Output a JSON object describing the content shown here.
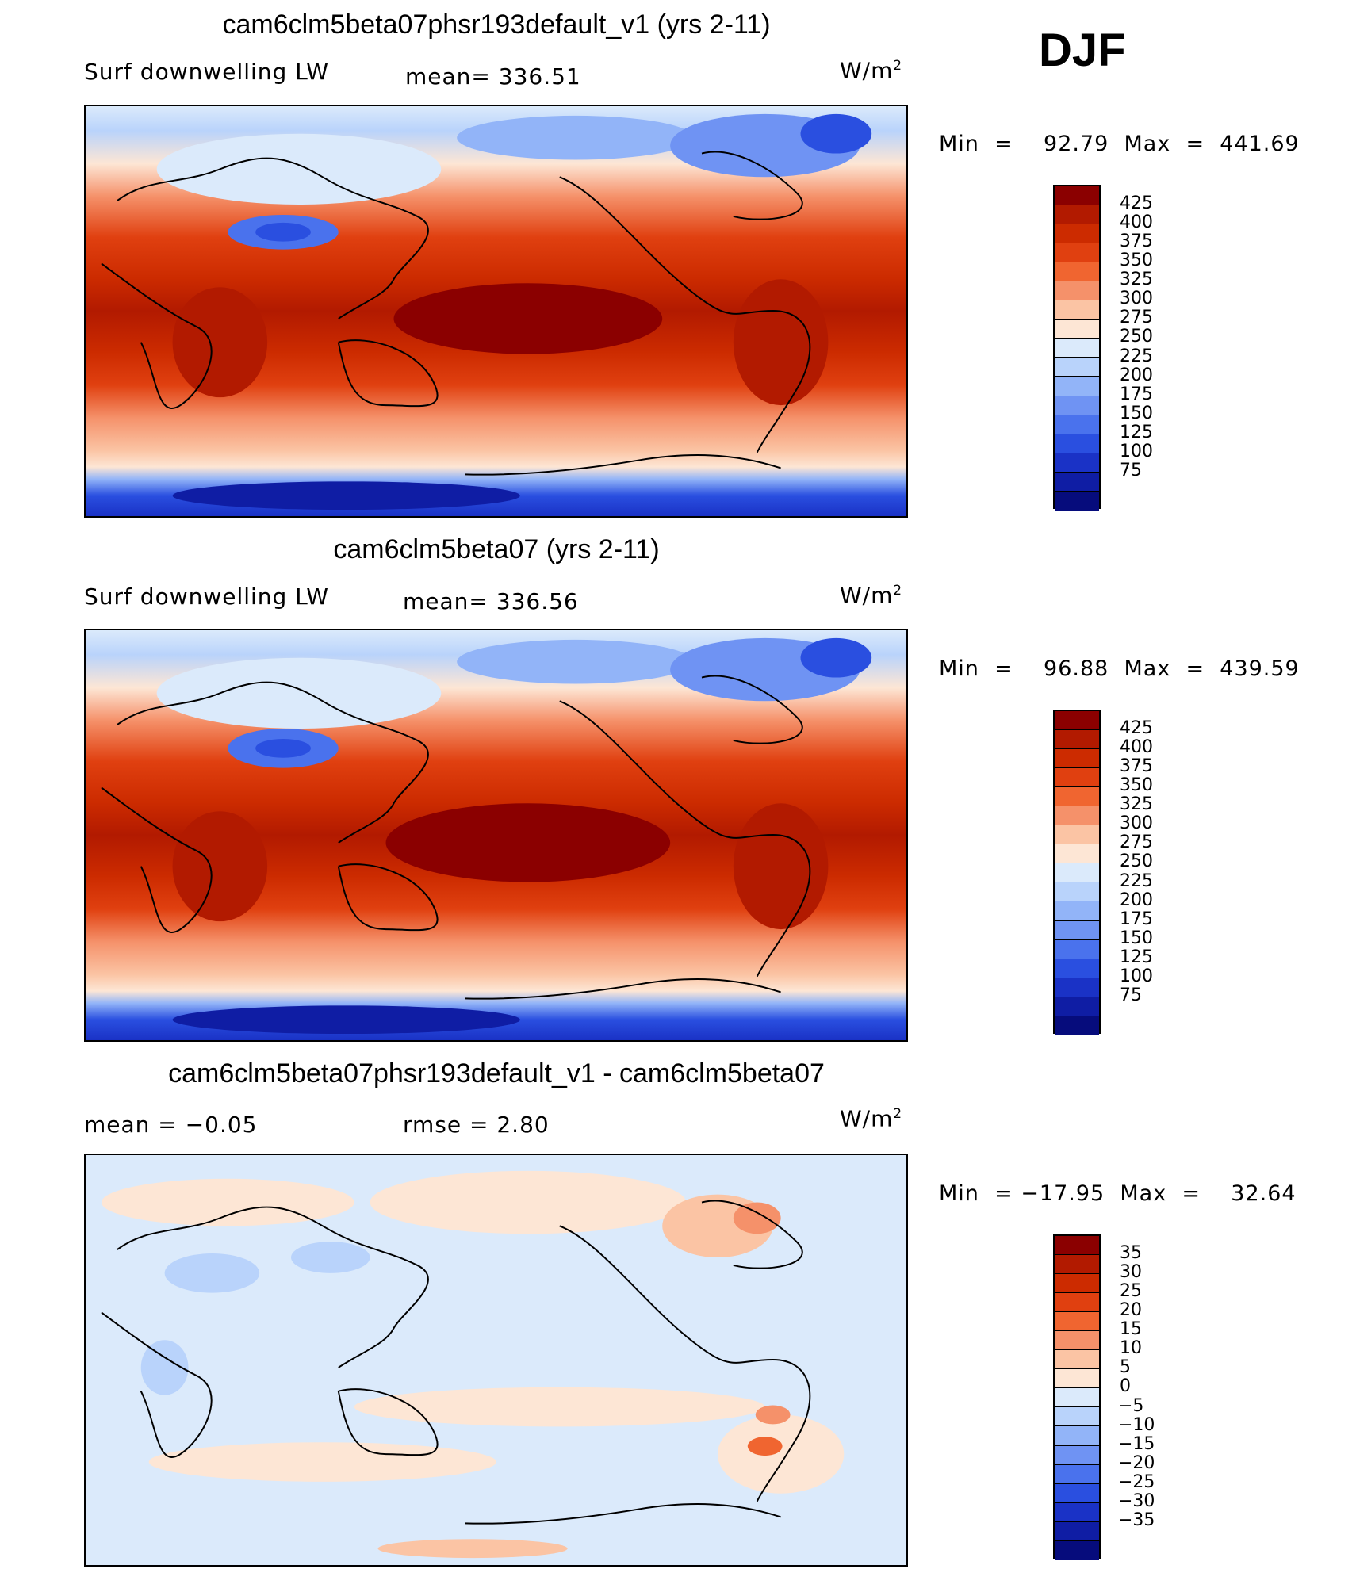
{
  "season": "DJF",
  "panels": [
    {
      "title": "cam6clm5beta07phsr193default_v1 (yrs 2-11)",
      "left_text": "Surf  downwelling  LW",
      "mid_text": "mean=  336.51",
      "units": "W/m",
      "units_sup": "2",
      "minmax": "Min  =    92.79  Max  =  441.69",
      "colorbar_labels": [
        "425",
        "400",
        "375",
        "350",
        "325",
        "300",
        "275",
        "250",
        "225",
        "200",
        "175",
        "150",
        "125",
        "100",
        "75"
      ],
      "colors": [
        "#8b0000",
        "#b21a00",
        "#cc2b00",
        "#e04010",
        "#f06530",
        "#f5916a",
        "#fbc4a4",
        "#fde6d5",
        "#dbeafb",
        "#b9d3fb",
        "#92b4f8",
        "#6f93f3",
        "#4a72ed",
        "#2a4fe0",
        "#1a32c6",
        "#0f1da4",
        "#060c7c"
      ]
    },
    {
      "title": "cam6clm5beta07 (yrs 2-11)",
      "left_text": "Surf  downwelling  LW",
      "mid_text": "mean=  336.56",
      "units": "W/m",
      "units_sup": "2",
      "minmax": "Min  =    96.88  Max  =  439.59",
      "colorbar_labels": [
        "425",
        "400",
        "375",
        "350",
        "325",
        "300",
        "275",
        "250",
        "225",
        "200",
        "175",
        "150",
        "125",
        "100",
        "75"
      ],
      "colors": [
        "#8b0000",
        "#b21a00",
        "#cc2b00",
        "#e04010",
        "#f06530",
        "#f5916a",
        "#fbc4a4",
        "#fde6d5",
        "#dbeafb",
        "#b9d3fb",
        "#92b4f8",
        "#6f93f3",
        "#4a72ed",
        "#2a4fe0",
        "#1a32c6",
        "#0f1da4",
        "#060c7c"
      ]
    },
    {
      "title": "cam6clm5beta07phsr193default_v1 - cam6clm5beta07",
      "left_text": "mean  =    −0.05",
      "mid_text": "rmse  =     2.80",
      "units": "W/m",
      "units_sup": "2",
      "minmax": "Min  = −17.95  Max  =    32.64",
      "colorbar_labels": [
        "35",
        "30",
        "25",
        "20",
        "15",
        "10",
        "5",
        "0",
        "−5",
        "−10",
        "−15",
        "−20",
        "−25",
        "−30",
        "−35"
      ],
      "colors": [
        "#8b0000",
        "#b21a00",
        "#cc2b00",
        "#e04010",
        "#f06530",
        "#f5916a",
        "#fbc4a4",
        "#fde6d5",
        "#dbeafb",
        "#b9d3fb",
        "#92b4f8",
        "#6f93f3",
        "#4a72ed",
        "#2a4fe0",
        "#1a32c6",
        "#0f1da4",
        "#060c7c"
      ]
    }
  ]
}
